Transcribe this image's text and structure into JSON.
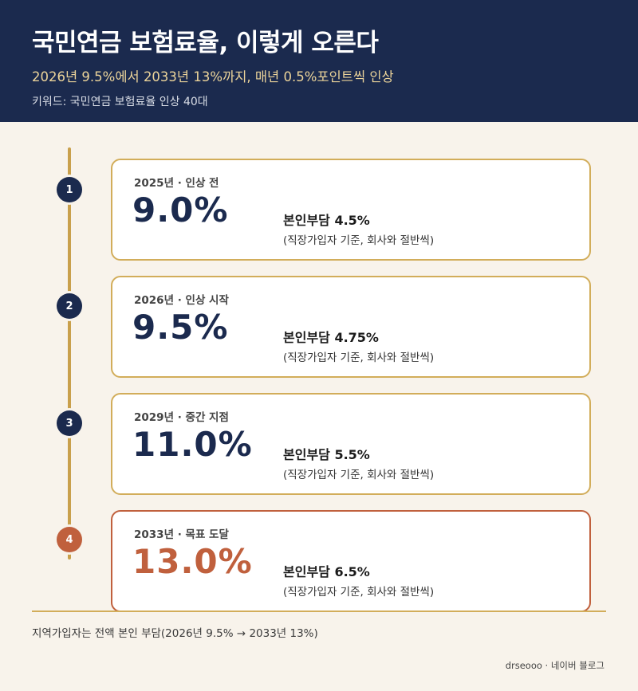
{
  "header": {
    "title": "국민연금 보험료율, 이렇게 오른다",
    "subtitle": "2026년 9.5%에서 2033년 13%까지, 매년 0.5%포인트씩 인상",
    "keywords": "키워드: 국민연금 보험료율 인상 40대"
  },
  "steps": [
    {
      "number": "1",
      "label": "2025년 · 인상 전",
      "rate": "9.0%",
      "burden": "본인부담 4.5%",
      "note": "(직장가입자 기준, 회사와 절반씩)"
    },
    {
      "number": "2",
      "label": "2026년 · 인상 시작",
      "rate": "9.5%",
      "burden": "본인부담 4.75%",
      "note": "(직장가입자 기준, 회사와 절반씩)"
    },
    {
      "number": "3",
      "label": "2029년 · 중간 지점",
      "rate": "11.0%",
      "burden": "본인부담 5.5%",
      "note": "(직장가입자 기준, 회사와 절반씩)"
    },
    {
      "number": "4",
      "label": "2033년 · 목표 도달",
      "rate": "13.0%",
      "burden": "본인부담 6.5%",
      "note": "(직장가입자 기준, 회사와 절반씩)"
    }
  ],
  "footnote": "지역가입자는 전액 본인 부담(2026년 9.5% → 2033년 13%)",
  "credit": "drseooo · 네이버 블로그",
  "colors": {
    "navy": "#1b2a4e",
    "gold": "#c9a04c",
    "accent": "#c0603d",
    "background": "#f8f3eb"
  }
}
